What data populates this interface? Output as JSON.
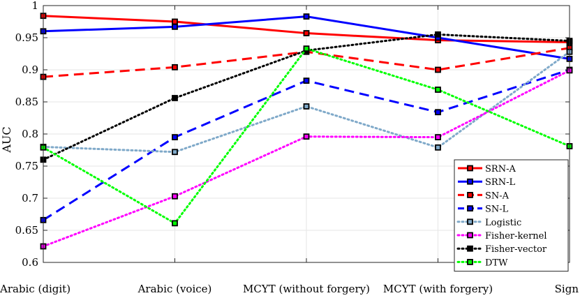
{
  "chart_data": {
    "type": "line",
    "categories": [
      "Arabic (digit)",
      "Arabic (voice)",
      "MCYT (without forgery)",
      "MCYT (with forgery)",
      "Sign"
    ],
    "ylabel": "AUC",
    "xlabel": "",
    "title": "",
    "ylim": [
      0.6,
      1.0
    ],
    "yticks": [
      0.6,
      0.65,
      0.7,
      0.75,
      0.8,
      0.85,
      0.9,
      0.95,
      1
    ],
    "ytick_labels": [
      "0.6",
      "0.65",
      "0.7",
      "0.75",
      "0.8",
      "0.85",
      "0.9",
      "0.95",
      "1"
    ],
    "grid": true,
    "legend_position": "bottom-right",
    "series": [
      {
        "name": "SRN-A",
        "color": "#ff0000",
        "style": "solid",
        "values": [
          0.984,
          0.975,
          0.957,
          0.946,
          0.943
        ]
      },
      {
        "name": "SRN-L",
        "color": "#0000ff",
        "style": "solid",
        "values": [
          0.96,
          0.967,
          0.983,
          0.95,
          0.917
        ]
      },
      {
        "name": "SN-A",
        "color": "#ff0000",
        "style": "dashed",
        "values": [
          0.889,
          0.904,
          0.928,
          0.9,
          0.934
        ]
      },
      {
        "name": "SN-L",
        "color": "#0000ff",
        "style": "dashed",
        "values": [
          0.666,
          0.795,
          0.883,
          0.834,
          0.9
        ]
      },
      {
        "name": "Logistic",
        "color": "#7fa9c9",
        "style": "dotted",
        "values": [
          0.78,
          0.772,
          0.843,
          0.779,
          0.928
        ]
      },
      {
        "name": "Fisher-kernel",
        "color": "#ff00ff",
        "style": "dotted",
        "values": [
          0.625,
          0.703,
          0.796,
          0.795,
          0.899
        ]
      },
      {
        "name": "Fisher-vector",
        "color": "#000000",
        "style": "dotted",
        "values": [
          0.76,
          0.856,
          0.93,
          0.955,
          0.945
        ]
      },
      {
        "name": "DTW",
        "color": "#00ff00",
        "style": "dotted",
        "values": [
          0.779,
          0.661,
          0.933,
          0.869,
          0.781
        ]
      }
    ]
  }
}
